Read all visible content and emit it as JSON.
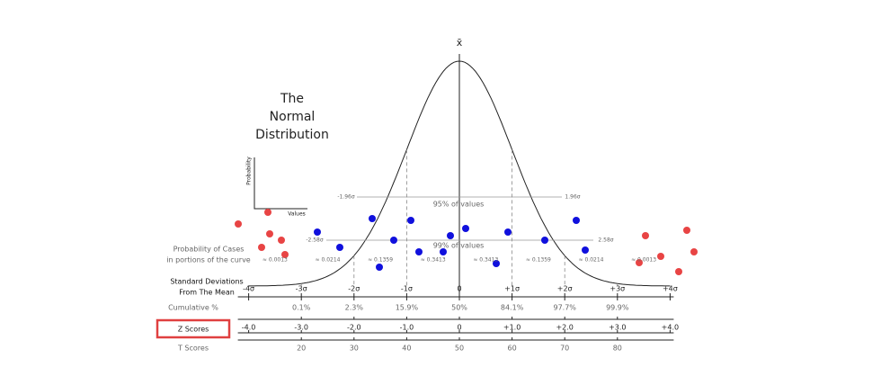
{
  "header": {
    "mean_symbol": "x̄",
    "title": [
      "The",
      "Normal",
      "Distribution"
    ]
  },
  "inset": {
    "y_label": "Probability",
    "x_label": "Values"
  },
  "bands": {
    "inner_left": "-1.96σ",
    "inner_right": "1.96σ",
    "inner_text": "95% of values",
    "outer_left": "-2.58σ",
    "outer_right": "2.58σ",
    "outer_text": "99% of values"
  },
  "portions": {
    "label": [
      "Probability of Cases",
      "in portions of the curve"
    ],
    "values": [
      "≈ 0.0013",
      "≈ 0.0214",
      "≈ 0.1359",
      "≈ 0.3413",
      "≈ 0.3413",
      "≈ 0.1359",
      "≈ 0.0214",
      "≈ 0.0013"
    ]
  },
  "deviations": {
    "label": [
      "Standard Deviations",
      "From The Mean"
    ],
    "values": [
      "-4σ",
      "-3σ",
      "-2σ",
      "-1σ",
      "0",
      "+1σ",
      "+2σ",
      "+3σ",
      "+4σ"
    ]
  },
  "cumulative": {
    "label": "Cumulative %",
    "values": [
      "0.1%",
      "2.3%",
      "15.9%",
      "50%",
      "84.1%",
      "97.7%",
      "99.9%"
    ]
  },
  "z_scores": {
    "label": "Z Scores",
    "values": [
      "-4.0",
      "-3.0",
      "-2.0",
      "-1.0",
      "0",
      "+1.0",
      "+2.0",
      "+3.0",
      "+4.0"
    ]
  },
  "t_scores": {
    "label": "T Scores",
    "values": [
      "20",
      "30",
      "40",
      "50",
      "60",
      "70",
      "80"
    ]
  }
}
